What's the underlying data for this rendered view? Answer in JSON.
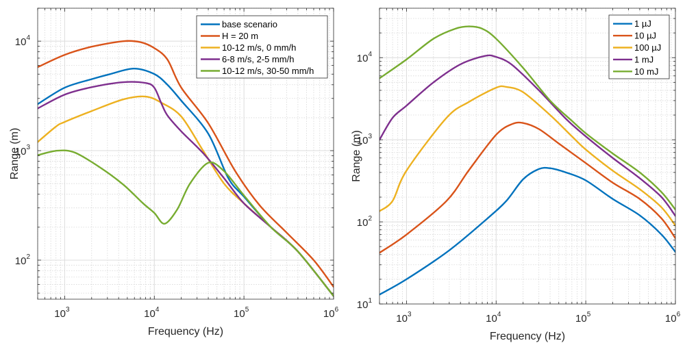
{
  "chart_data": [
    {
      "type": "line",
      "title": "",
      "xlabel": "Frequency  (Hz)",
      "ylabel": "Range  (m)",
      "xscale": "log",
      "yscale": "log",
      "xlim": [
        500,
        1000000
      ],
      "ylim": [
        44,
        20000
      ],
      "xticks": [
        1000,
        10000,
        100000,
        1000000
      ],
      "xtick_labels": [
        {
          "base": "10",
          "exp": "3"
        },
        {
          "base": "10",
          "exp": "4"
        },
        {
          "base": "10",
          "exp": "5"
        },
        {
          "base": "10",
          "exp": "6"
        }
      ],
      "yticks": [
        100,
        1000,
        10000
      ],
      "ytick_labels": [
        {
          "base": "10",
          "exp": "2"
        },
        {
          "base": "10",
          "exp": "3"
        },
        {
          "base": "10",
          "exp": "4"
        }
      ],
      "grid": true,
      "legend_position": "top-right",
      "series": [
        {
          "name": "base scenario",
          "color": "#0072BD",
          "x": [
            500,
            1000,
            2000,
            3200,
            5900,
            10000,
            14000,
            20000,
            40000,
            67000,
            100000,
            200000,
            400000,
            1000000
          ],
          "y": [
            2660,
            3760,
            4500,
            5000,
            5620,
            5010,
            4000,
            2860,
            1430,
            560,
            380,
            200,
            120,
            47
          ]
        },
        {
          "name": "H = 20 m",
          "color": "#D95319",
          "x": [
            500,
            1000,
            2000,
            4500,
            7000,
            10000,
            14000,
            20000,
            40000,
            80000,
            150000,
            300000,
            600000,
            1000000
          ],
          "y": [
            5790,
            7500,
            8900,
            10000,
            9800,
            8650,
            6800,
            3760,
            1780,
            650,
            316,
            178,
            100,
            57
          ]
        },
        {
          "name": "10-12 m/s, 0 mm/h",
          "color": "#EDB120",
          "x": [
            500,
            800,
            1000,
            2000,
            4500,
            8000,
            12000,
            20000,
            35000,
            60000,
            100000,
            200000,
            400000,
            1000000
          ],
          "y": [
            1200,
            1660,
            1830,
            2300,
            2940,
            3120,
            2740,
            2050,
            1000,
            500,
            330,
            200,
            120,
            47
          ]
        },
        {
          "name": "6-8 m/s, 2-5 mm/h",
          "color": "#7E2F8E",
          "x": [
            500,
            1000,
            2000,
            4500,
            8000,
            10000,
            12000,
            14000,
            20000,
            35000,
            60000,
            100000,
            200000,
            400000,
            1000000
          ],
          "y": [
            2430,
            3250,
            3800,
            4220,
            4150,
            3760,
            2700,
            2100,
            1500,
            950,
            560,
            330,
            200,
            120,
            47
          ]
        },
        {
          "name": "10-12 m/s, 30-50 mm/h",
          "color": "#77AC30",
          "x": [
            500,
            830,
            1300,
            2500,
            4500,
            7500,
            10000,
            13000,
            18000,
            25000,
            40000,
            60000,
            100000,
            200000,
            400000,
            1000000
          ],
          "y": [
            910,
            1000,
            960,
            700,
            490,
            330,
            270,
            215,
            290,
            500,
            775,
            650,
            390,
            200,
            120,
            47
          ]
        }
      ]
    },
    {
      "type": "line",
      "title": "",
      "xlabel": "Frequency  (Hz)",
      "ylabel": "Range  (m)",
      "xscale": "log",
      "yscale": "log",
      "xlim": [
        500,
        1000000
      ],
      "ylim": [
        10,
        40000
      ],
      "xticks": [
        1000,
        10000,
        100000,
        1000000
      ],
      "xtick_labels": [
        {
          "base": "10",
          "exp": "3"
        },
        {
          "base": "10",
          "exp": "4"
        },
        {
          "base": "10",
          "exp": "5"
        },
        {
          "base": "10",
          "exp": "6"
        }
      ],
      "yticks": [
        10,
        100,
        1000,
        10000
      ],
      "ytick_labels": [
        {
          "base": "10",
          "exp": "1"
        },
        {
          "base": "10",
          "exp": "2"
        },
        {
          "base": "10",
          "exp": "3"
        },
        {
          "base": "10",
          "exp": "4"
        }
      ],
      "grid": true,
      "legend_position": "top-right",
      "series": [
        {
          "name": "1 µJ",
          "color": "#0072BD",
          "x": [
            500,
            1000,
            3000,
            8000,
            13000,
            20000,
            30000,
            40000,
            60000,
            100000,
            200000,
            400000,
            700000,
            1000000
          ],
          "y": [
            13,
            20,
            45,
            110,
            180,
            330,
            440,
            450,
            400,
            320,
            190,
            120,
            70,
            43
          ]
        },
        {
          "name": "10 µJ",
          "color": "#D95319",
          "x": [
            500,
            1000,
            2800,
            5000,
            10000,
            15000,
            20000,
            30000,
            50000,
            100000,
            200000,
            400000,
            700000,
            1000000
          ],
          "y": [
            42,
            70,
            180,
            430,
            1150,
            1550,
            1600,
            1350,
            900,
            520,
            300,
            190,
            110,
            63
          ]
        },
        {
          "name": "100 µJ",
          "color": "#EDB120",
          "x": [
            500,
            700,
            1000,
            2800,
            5000,
            10000,
            13000,
            20000,
            40000,
            70000,
            100000,
            200000,
            400000,
            700000,
            1000000
          ],
          "y": [
            135,
            180,
            420,
            1850,
            2900,
            4300,
            4400,
            3800,
            2000,
            1100,
            760,
            420,
            250,
            150,
            90
          ]
        },
        {
          "name": "1 mJ",
          "color": "#7E2F8E",
          "x": [
            500,
            700,
            1000,
            2000,
            4000,
            7500,
            10000,
            15000,
            30000,
            60000,
            100000,
            200000,
            400000,
            700000,
            1000000
          ],
          "y": [
            1000,
            1850,
            2600,
            5000,
            8300,
            10500,
            10200,
            8200,
            4000,
            1800,
            1100,
            600,
            340,
            200,
            118
          ]
        },
        {
          "name": "10 mJ",
          "color": "#77AC30",
          "x": [
            500,
            1000,
            2000,
            3500,
            5000,
            7000,
            10000,
            20000,
            40000,
            70000,
            100000,
            200000,
            400000,
            700000,
            1000000
          ],
          "y": [
            5600,
            9500,
            17000,
            22500,
            24000,
            22500,
            17000,
            7500,
            3000,
            1700,
            1200,
            680,
            400,
            230,
            141
          ]
        }
      ]
    }
  ]
}
